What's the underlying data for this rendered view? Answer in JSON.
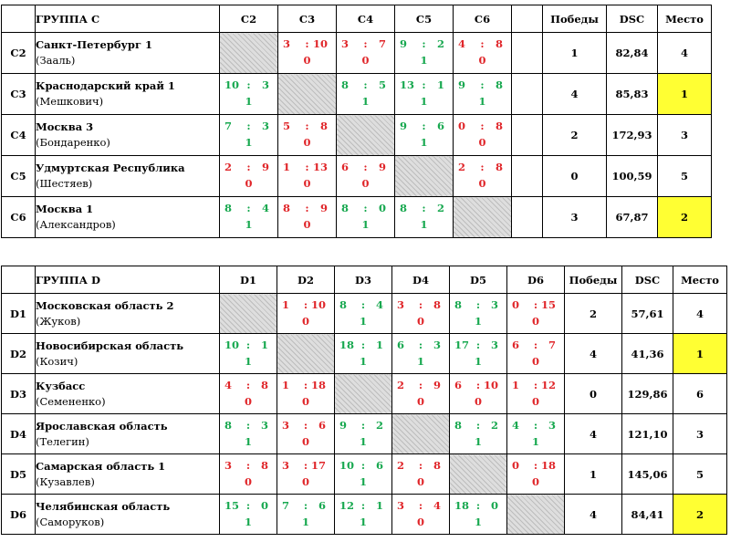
{
  "groups": [
    {
      "title": "ГРУППА С",
      "codes": [
        "C2",
        "C3",
        "C4",
        "C5",
        "C6"
      ],
      "headers": {
        "wins": "Победы",
        "dsc": "DSC",
        "place": "Место"
      },
      "rows": [
        {
          "code": "C2",
          "team": "Санкт-Петербург 1",
          "coach": "(Зааль)",
          "cells": [
            null,
            {
              "a": "3",
              "b": "10",
              "p": "0",
              "result": "loss"
            },
            {
              "a": "3",
              "b": "7",
              "p": "0",
              "result": "loss"
            },
            {
              "a": "9",
              "b": "2",
              "p": "1",
              "result": "win"
            },
            {
              "a": "4",
              "b": "8",
              "p": "0",
              "result": "loss"
            }
          ],
          "wins": "1",
          "dsc": "82,84",
          "place": "4",
          "highlight": false
        },
        {
          "code": "C3",
          "team": "Краснодарский край 1",
          "coach": "(Мешкович)",
          "cells": [
            {
              "a": "10",
              "b": "3",
              "p": "1",
              "result": "win"
            },
            null,
            {
              "a": "8",
              "b": "5",
              "p": "1",
              "result": "win"
            },
            {
              "a": "13",
              "b": "1",
              "p": "1",
              "result": "win"
            },
            {
              "a": "9",
              "b": "8",
              "p": "1",
              "result": "win"
            }
          ],
          "wins": "4",
          "dsc": "85,83",
          "place": "1",
          "highlight": true
        },
        {
          "code": "C4",
          "team": "Москва 3",
          "coach": "(Бондаренко)",
          "cells": [
            {
              "a": "7",
              "b": "3",
              "p": "1",
              "result": "win"
            },
            {
              "a": "5",
              "b": "8",
              "p": "0",
              "result": "loss"
            },
            null,
            {
              "a": "9",
              "b": "6",
              "p": "1",
              "result": "win"
            },
            {
              "a": "0",
              "b": "8",
              "p": "0",
              "result": "loss"
            }
          ],
          "wins": "2",
          "dsc": "172,93",
          "place": "3",
          "highlight": false
        },
        {
          "code": "C5",
          "team": "Удмуртская Республика",
          "coach": "(Шестяев)",
          "cells": [
            {
              "a": "2",
              "b": "9",
              "p": "0",
              "result": "loss"
            },
            {
              "a": "1",
              "b": "13",
              "p": "0",
              "result": "loss"
            },
            {
              "a": "6",
              "b": "9",
              "p": "0",
              "result": "loss"
            },
            null,
            {
              "a": "2",
              "b": "8",
              "p": "0",
              "result": "loss"
            }
          ],
          "wins": "0",
          "dsc": "100,59",
          "place": "5",
          "highlight": false
        },
        {
          "code": "C6",
          "team": "Москва 1",
          "coach": "(Александров)",
          "cells": [
            {
              "a": "8",
              "b": "4",
              "p": "1",
              "result": "win"
            },
            {
              "a": "8",
              "b": "9",
              "p": "0",
              "result": "loss"
            },
            {
              "a": "8",
              "b": "0",
              "p": "1",
              "result": "win"
            },
            {
              "a": "8",
              "b": "2",
              "p": "1",
              "result": "win"
            },
            null
          ],
          "wins": "3",
          "dsc": "67,87",
          "place": "2",
          "highlight": true
        }
      ]
    },
    {
      "title": "ГРУППА D",
      "codes": [
        "D1",
        "D2",
        "D3",
        "D4",
        "D5",
        "D6"
      ],
      "headers": {
        "wins": "Победы",
        "dsc": "DSC",
        "place": "Место"
      },
      "rows": [
        {
          "code": "D1",
          "team": "Московская область 2",
          "coach": "(Жуков)",
          "cells": [
            null,
            {
              "a": "1",
              "b": "10",
              "p": "0",
              "result": "loss"
            },
            {
              "a": "8",
              "b": "4",
              "p": "1",
              "result": "win"
            },
            {
              "a": "3",
              "b": "8",
              "p": "0",
              "result": "loss"
            },
            {
              "a": "8",
              "b": "3",
              "p": "1",
              "result": "win"
            },
            {
              "a": "0",
              "b": "15",
              "p": "0",
              "result": "loss"
            }
          ],
          "wins": "2",
          "dsc": "57,61",
          "place": "4",
          "highlight": false
        },
        {
          "code": "D2",
          "team": "Новосибирская область",
          "coach": "(Козич)",
          "cells": [
            {
              "a": "10",
              "b": "1",
              "p": "1",
              "result": "win"
            },
            null,
            {
              "a": "18",
              "b": "1",
              "p": "1",
              "result": "win"
            },
            {
              "a": "6",
              "b": "3",
              "p": "1",
              "result": "win"
            },
            {
              "a": "17",
              "b": "3",
              "p": "1",
              "result": "win"
            },
            {
              "a": "6",
              "b": "7",
              "p": "0",
              "result": "loss"
            }
          ],
          "wins": "4",
          "dsc": "41,36",
          "place": "1",
          "highlight": true
        },
        {
          "code": "D3",
          "team": "Кузбасс",
          "coach": "(Семененко)",
          "cells": [
            {
              "a": "4",
              "b": "8",
              "p": "0",
              "result": "loss"
            },
            {
              "a": "1",
              "b": "18",
              "p": "0",
              "result": "loss"
            },
            null,
            {
              "a": "2",
              "b": "9",
              "p": "0",
              "result": "loss"
            },
            {
              "a": "6",
              "b": "10",
              "p": "0",
              "result": "loss"
            },
            {
              "a": "1",
              "b": "12",
              "p": "0",
              "result": "loss"
            }
          ],
          "wins": "0",
          "dsc": "129,86",
          "place": "6",
          "highlight": false
        },
        {
          "code": "D4",
          "team": "Ярославская область",
          "coach": "(Телегин)",
          "cells": [
            {
              "a": "8",
              "b": "3",
              "p": "1",
              "result": "win"
            },
            {
              "a": "3",
              "b": "6",
              "p": "0",
              "result": "loss"
            },
            {
              "a": "9",
              "b": "2",
              "p": "1",
              "result": "win"
            },
            null,
            {
              "a": "8",
              "b": "2",
              "p": "1",
              "result": "win"
            },
            {
              "a": "4",
              "b": "3",
              "p": "1",
              "result": "win"
            }
          ],
          "wins": "4",
          "dsc": "121,10",
          "place": "3",
          "highlight": false
        },
        {
          "code": "D5",
          "team": "Самарская область 1",
          "coach": "(Кузавлев)",
          "cells": [
            {
              "a": "3",
              "b": "8",
              "p": "0",
              "result": "loss"
            },
            {
              "a": "3",
              "b": "17",
              "p": "0",
              "result": "loss"
            },
            {
              "a": "10",
              "b": "6",
              "p": "1",
              "result": "win"
            },
            {
              "a": "2",
              "b": "8",
              "p": "0",
              "result": "loss"
            },
            null,
            {
              "a": "0",
              "b": "18",
              "p": "0",
              "result": "loss"
            }
          ],
          "wins": "1",
          "dsc": "145,06",
          "place": "5",
          "highlight": false
        },
        {
          "code": "D6",
          "team": "Челябинская область",
          "coach": "(Саморуков)",
          "cells": [
            {
              "a": "15",
              "b": "0",
              "p": "1",
              "result": "win"
            },
            {
              "a": "7",
              "b": "6",
              "p": "1",
              "result": "win"
            },
            {
              "a": "12",
              "b": "1",
              "p": "1",
              "result": "win"
            },
            {
              "a": "3",
              "b": "4",
              "p": "0",
              "result": "loss"
            },
            {
              "a": "18",
              "b": "0",
              "p": "1",
              "result": "win"
            },
            null
          ],
          "wins": "4",
          "dsc": "84,41",
          "place": "2",
          "highlight": true
        }
      ]
    }
  ],
  "colors": {
    "win": "#17a84f",
    "loss": "#e0262a",
    "highlight": "#ffff33"
  }
}
